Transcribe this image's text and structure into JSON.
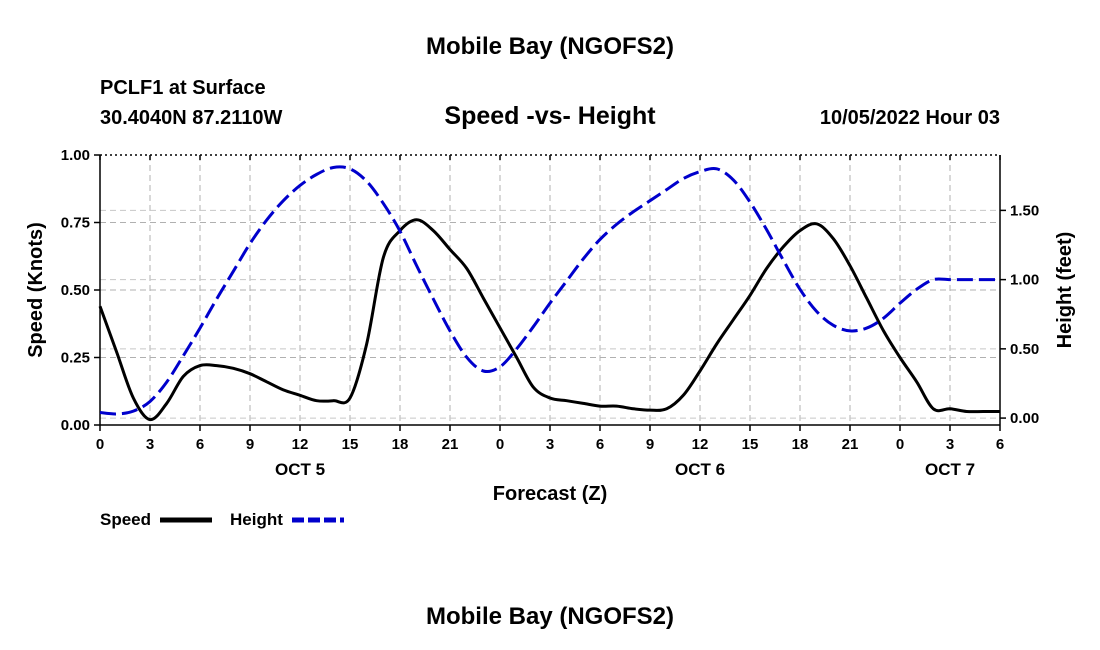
{
  "page": {
    "title_top": "Mobile Bay (NGOFS2)",
    "station": "PCLF1 at Surface",
    "coords": "30.4040N  87.2110W",
    "chart_title": "Speed -vs- Height",
    "timestamp": "10/05/2022 Hour 03",
    "title_bottom": "Mobile Bay (NGOFS2)"
  },
  "chart_data": {
    "type": "line",
    "title": "Speed -vs- Height",
    "xlabel": "Forecast (Z)",
    "ylabel_left": "Speed (Knots)",
    "ylabel_right": "Height (feet)",
    "xlim": [
      0,
      54
    ],
    "ylim_left": [
      0,
      1.0
    ],
    "ylim_right": [
      -0.05,
      1.9
    ],
    "grid": true,
    "legend_position": "bottom-left",
    "x_tick_labels": [
      "0",
      "3",
      "6",
      "9",
      "12",
      "15",
      "18",
      "21",
      "0",
      "3",
      "6",
      "9",
      "12",
      "15",
      "18",
      "21",
      "0",
      "3",
      "6"
    ],
    "y_left_ticks": [
      "0.00",
      "0.25",
      "0.50",
      "0.75",
      "1.00"
    ],
    "y_right_ticks": [
      "0.00",
      "0.50",
      "1.00",
      "1.50"
    ],
    "date_labels": [
      {
        "label": "OCT 5",
        "x": 12
      },
      {
        "label": "OCT 6",
        "x": 36
      },
      {
        "label": "OCT 7",
        "x": 51
      }
    ],
    "series": [
      {
        "name": "Speed",
        "axis": "left",
        "color": "#000000",
        "dash": "solid",
        "x": [
          0,
          1,
          2,
          3,
          4,
          5,
          6,
          7,
          8,
          9,
          10,
          11,
          12,
          13,
          14,
          15,
          16,
          17,
          18,
          19,
          20,
          21,
          22,
          23,
          24,
          25,
          26,
          27,
          28,
          29,
          30,
          31,
          32,
          33,
          34,
          35,
          36,
          37,
          38,
          39,
          40,
          41,
          42,
          43,
          44,
          45,
          46,
          47,
          48,
          49,
          50,
          51,
          52,
          53,
          54
        ],
        "values": [
          0.44,
          0.27,
          0.1,
          0.02,
          0.08,
          0.18,
          0.22,
          0.22,
          0.21,
          0.19,
          0.16,
          0.13,
          0.11,
          0.09,
          0.09,
          0.1,
          0.3,
          0.62,
          0.72,
          0.76,
          0.72,
          0.65,
          0.58,
          0.47,
          0.36,
          0.25,
          0.14,
          0.1,
          0.09,
          0.08,
          0.07,
          0.07,
          0.06,
          0.055,
          0.06,
          0.11,
          0.2,
          0.3,
          0.39,
          0.48,
          0.58,
          0.66,
          0.72,
          0.745,
          0.69,
          0.59,
          0.47,
          0.35,
          0.25,
          0.16,
          0.06,
          0.06,
          0.05,
          0.05,
          0.05
        ]
      },
      {
        "name": "Height",
        "axis": "right",
        "color": "#0000cc",
        "dash": "dashed",
        "x": [
          0,
          1,
          2,
          3,
          4,
          5,
          6,
          7,
          8,
          9,
          10,
          11,
          12,
          13,
          14,
          15,
          16,
          17,
          18,
          19,
          20,
          21,
          22,
          23,
          24,
          25,
          26,
          27,
          28,
          29,
          30,
          31,
          32,
          33,
          34,
          35,
          36,
          37,
          38,
          39,
          40,
          41,
          42,
          43,
          44,
          45,
          46,
          47,
          48,
          49,
          50,
          51,
          52,
          53,
          54
        ],
        "values": [
          0.04,
          0.03,
          0.05,
          0.12,
          0.26,
          0.45,
          0.65,
          0.86,
          1.06,
          1.26,
          1.43,
          1.57,
          1.68,
          1.76,
          1.81,
          1.8,
          1.71,
          1.55,
          1.35,
          1.1,
          0.86,
          0.63,
          0.44,
          0.34,
          0.37,
          0.5,
          0.66,
          0.83,
          0.99,
          1.15,
          1.29,
          1.4,
          1.49,
          1.57,
          1.65,
          1.73,
          1.78,
          1.8,
          1.72,
          1.56,
          1.36,
          1.14,
          0.93,
          0.77,
          0.67,
          0.63,
          0.65,
          0.72,
          0.83,
          0.93,
          1.0,
          1.0,
          1.0,
          1.0,
          1.0
        ]
      }
    ]
  },
  "legend": {
    "speed_label": "Speed",
    "height_label": "Height"
  }
}
